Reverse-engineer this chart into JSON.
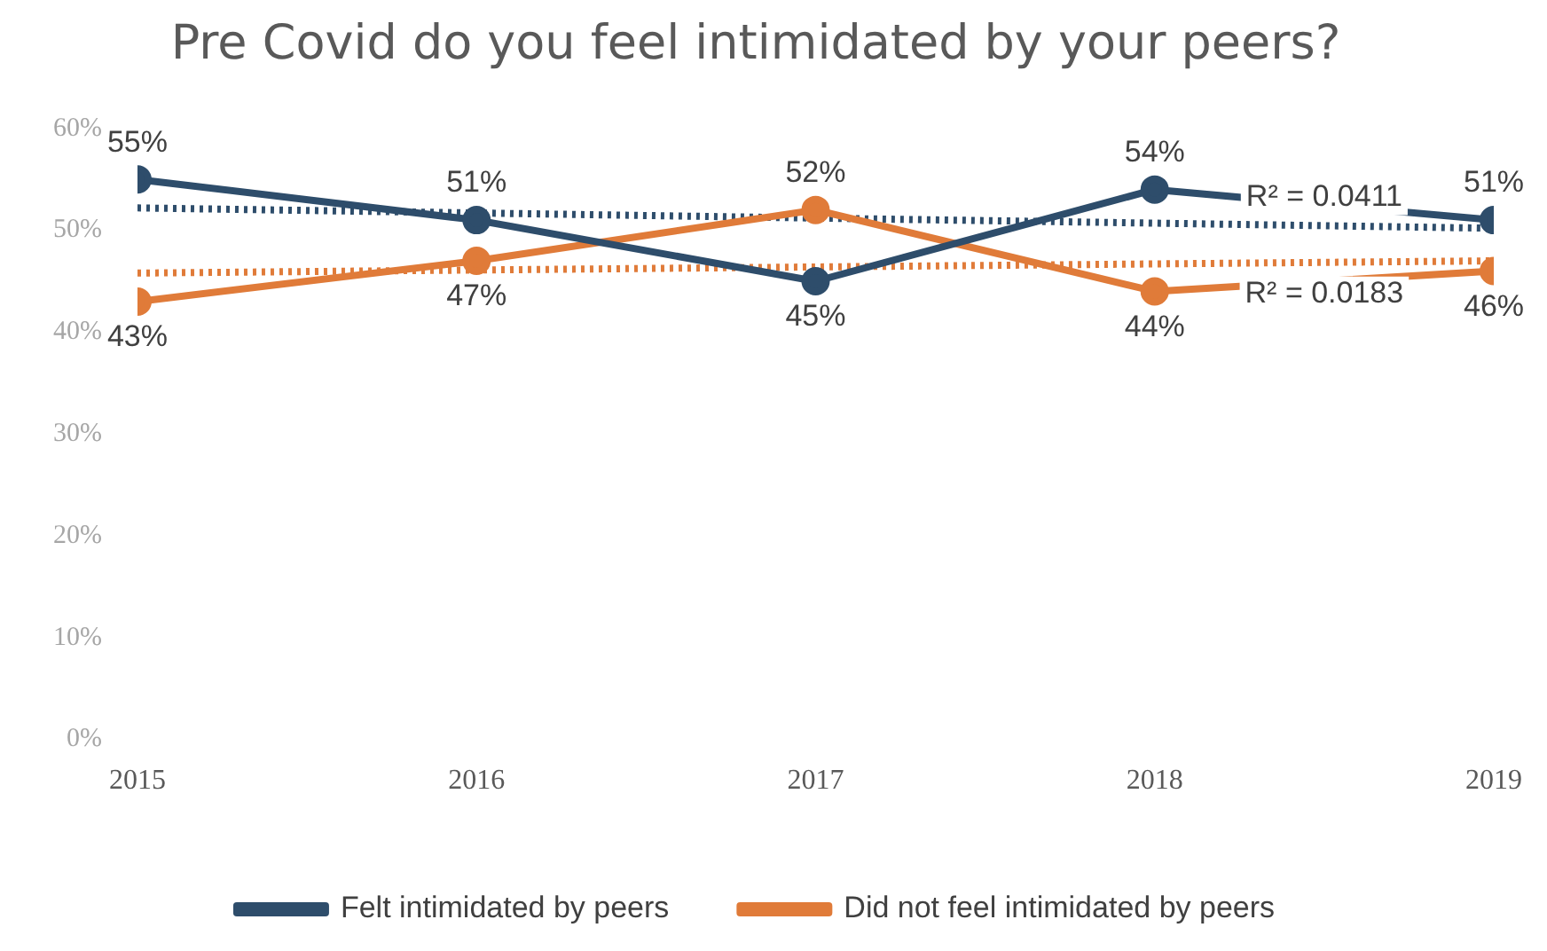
{
  "chart_data": {
    "type": "line",
    "title": "Pre Covid do you feel intimidated by your peers?",
    "categories": [
      "2015",
      "2016",
      "2017",
      "2018",
      "2019"
    ],
    "series": [
      {
        "name": "Felt intimidated by peers",
        "color": "#2e4d6b",
        "values": [
          55,
          51,
          45,
          54,
          51
        ],
        "value_labels": [
          "55%",
          "51%",
          "45%",
          "54%",
          "51%"
        ]
      },
      {
        "name": "Did not feel intimidated by peers",
        "color": "#e07b39",
        "values": [
          43,
          47,
          52,
          44,
          46
        ],
        "value_labels": [
          "43%",
          "47%",
          "52%",
          "44%",
          "46%"
        ]
      },
      {
        "type": "line",
        "color": "#2e4d6b",
        "values": [
          52.2,
          51.7,
          51.2,
          50.7,
          50.2
        ],
        "line_style": "dotted",
        "marker": "none"
      },
      {
        "type": "line",
        "color": "#e07b39",
        "values": [
          45.8,
          46.1,
          46.4,
          46.7,
          47.0
        ],
        "line_style": "dotted",
        "marker": "none"
      }
    ],
    "annotations": [
      "R² = 0.0411",
      "R² = 0.0183"
    ],
    "ylim": [
      0,
      60
    ],
    "yticks": [
      {
        "value": 0,
        "label": "0%"
      },
      {
        "value": 10,
        "label": "10%"
      },
      {
        "value": 20,
        "label": "20%"
      },
      {
        "value": 30,
        "label": "30%"
      },
      {
        "value": 40,
        "label": "40%"
      },
      {
        "value": 50,
        "label": "50%"
      },
      {
        "value": 60,
        "label": "60%"
      }
    ],
    "grid": false,
    "legend": "bottom",
    "marker": "circle",
    "line_style": "solid"
  }
}
